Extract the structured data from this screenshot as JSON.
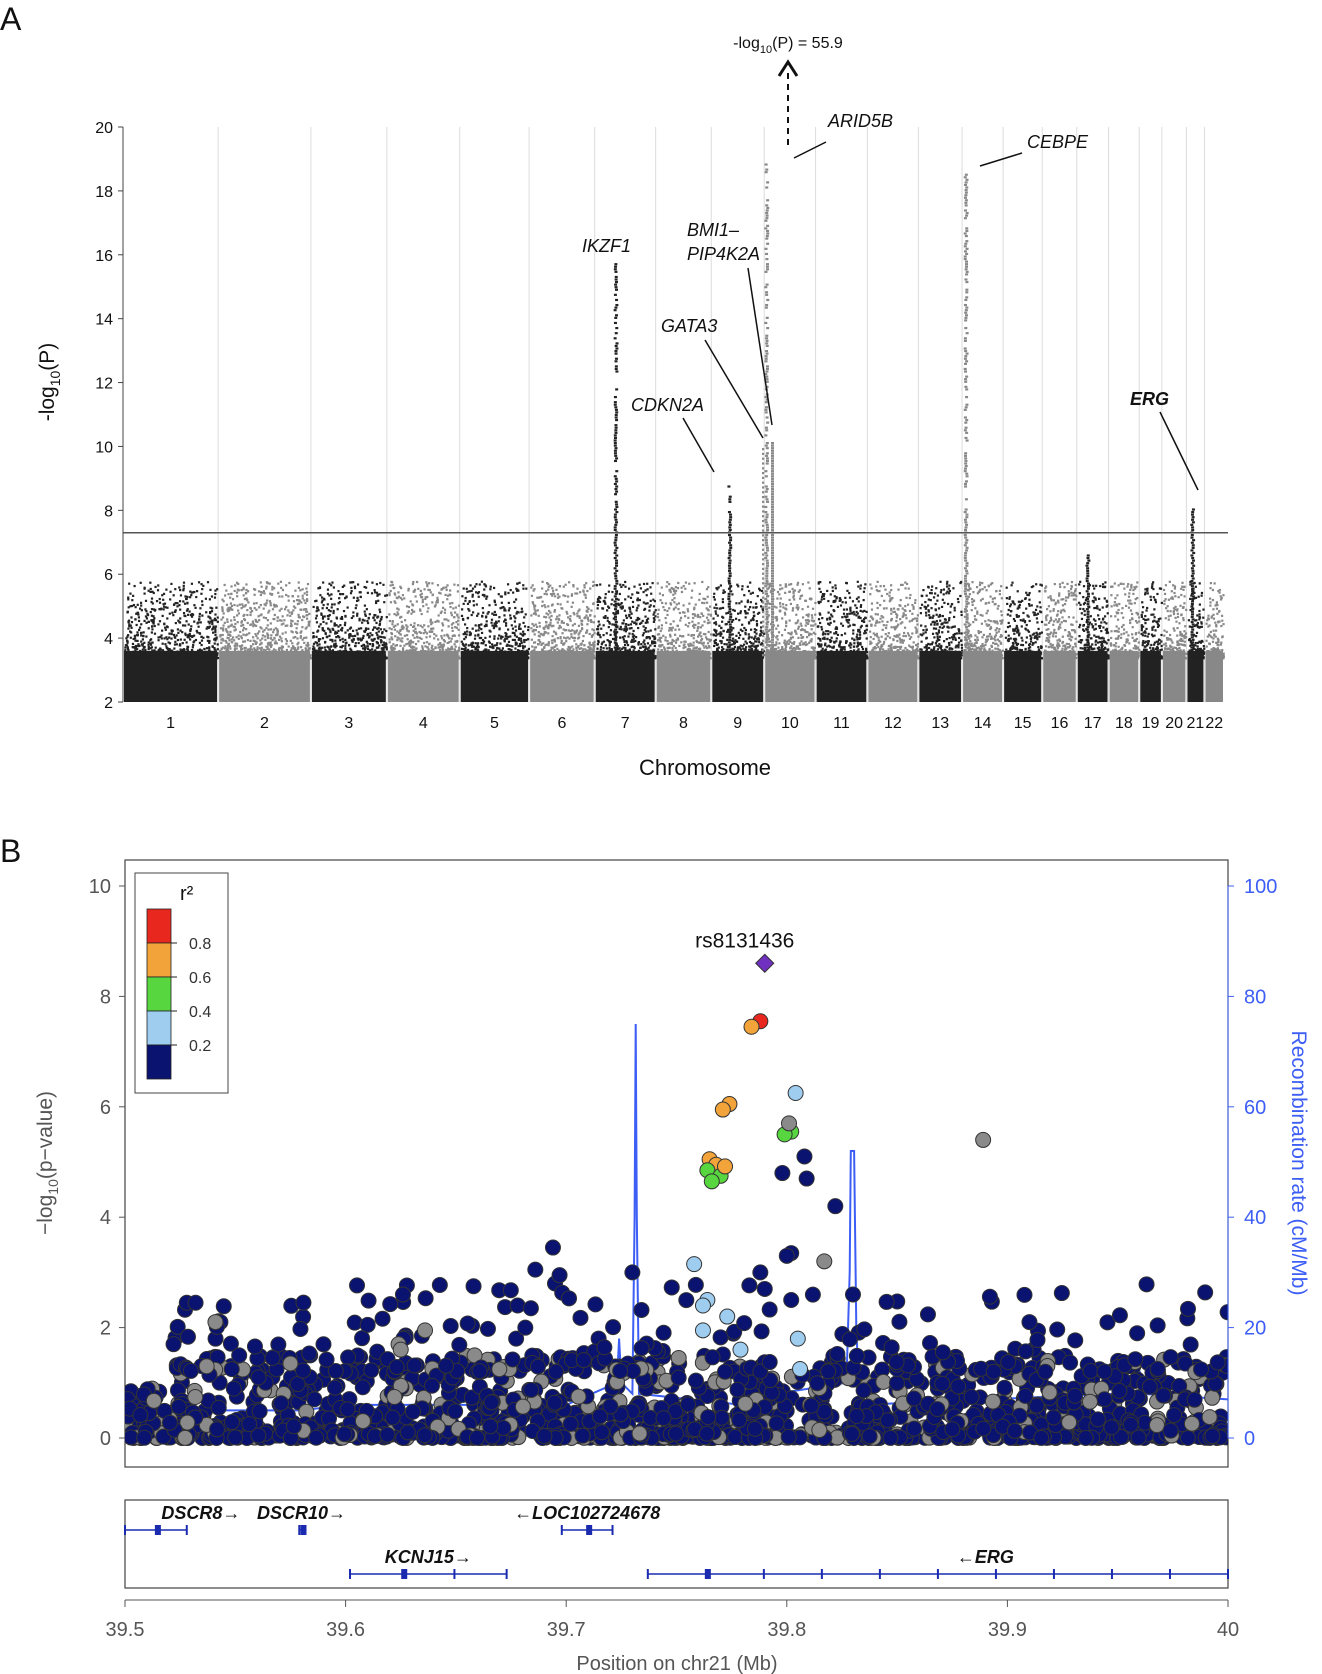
{
  "panels": {
    "a_label": "A",
    "b_label": "B"
  },
  "chart_data": [
    {
      "id": "manhattan",
      "type": "scatter",
      "title": "",
      "xlabel": "Chromosome",
      "ylabel_prefix": "-log",
      "ylabel_sub": "10",
      "ylabel_suffix": "(P)",
      "ylim": [
        2,
        20
      ],
      "yticks": [
        2,
        4,
        6,
        8,
        10,
        12,
        14,
        16,
        18,
        20
      ],
      "significance_threshold": 7.3,
      "chromosomes": [
        "1",
        "2",
        "3",
        "4",
        "5",
        "6",
        "7",
        "8",
        "9",
        "10",
        "11",
        "12",
        "13",
        "14",
        "15",
        "16",
        "17",
        "18",
        "19",
        "20",
        "21",
        "22"
      ],
      "off_scale_note": {
        "prefix": "-log",
        "sub": "10",
        "suffix": "(P) = 55.9",
        "max_value": 55.9
      },
      "gene_labels": [
        {
          "text": "IKZF1",
          "chromosome": "7",
          "bold": false
        },
        {
          "text": "CDKN2A",
          "chromosome": "9",
          "bold": false
        },
        {
          "text": "GATA3",
          "chromosome": "10",
          "bold": false
        },
        {
          "text": "BMI1–",
          "chromosome": "10",
          "bold": false
        },
        {
          "text": "PIP4K2A",
          "chromosome": "10",
          "bold": false
        },
        {
          "text": "ARID5B",
          "chromosome": "10",
          "bold": false
        },
        {
          "text": "CEBPE",
          "chromosome": "14",
          "bold": false
        },
        {
          "text": "ERG",
          "chromosome": "21",
          "bold": true
        }
      ],
      "peaks": [
        {
          "chromosome": "7",
          "max": 15.8
        },
        {
          "chromosome": "9",
          "max": 8.9
        },
        {
          "chromosome": "10",
          "max": 18.9
        },
        {
          "chromosome": "14",
          "max": 18.6
        },
        {
          "chromosome": "21",
          "max": 8.1
        },
        {
          "chromosome": "17",
          "max": 6.7
        }
      ],
      "colors": {
        "odd": "#222222",
        "even": "#888888",
        "threshold": "#555555"
      }
    },
    {
      "id": "regional",
      "type": "scatter",
      "xlabel": "Position on chr21 (Mb)",
      "ylabel_left_prefix": "−log",
      "ylabel_left_sub": "10",
      "ylabel_left_suffix": "(p−value)",
      "ylabel_right": "Recombination rate (cM/Mb)",
      "xlim": [
        39.5,
        40
      ],
      "xticks": [
        "39.5",
        "39.6",
        "39.7",
        "39.8",
        "39.9",
        "40"
      ],
      "ylim_left": [
        0,
        10
      ],
      "yticks_left": [
        "0",
        "2",
        "4",
        "6",
        "8",
        "10"
      ],
      "ylim_right": [
        0,
        100
      ],
      "yticks_right": [
        "0",
        "20",
        "40",
        "60",
        "80",
        "100"
      ],
      "lead_snp": {
        "label": "rs8131436",
        "position": 39.79,
        "value": 8.6
      },
      "legend": {
        "title": "r²",
        "labels": [
          "0.8",
          "0.6",
          "0.4",
          "0.2"
        ],
        "colors": [
          "#e8281e",
          "#f2a33a",
          "#57d63f",
          "#9ecdf0",
          "#0a1370"
        ]
      },
      "highlight_points": [
        {
          "x": 39.788,
          "y": 7.55,
          "r2": "red"
        },
        {
          "x": 39.784,
          "y": 7.45,
          "r2": "orange"
        },
        {
          "x": 39.774,
          "y": 6.05,
          "r2": "orange"
        },
        {
          "x": 39.771,
          "y": 5.95,
          "r2": "orange"
        },
        {
          "x": 39.765,
          "y": 5.05,
          "r2": "orange"
        },
        {
          "x": 39.768,
          "y": 4.95,
          "r2": "orange"
        },
        {
          "x": 39.764,
          "y": 4.85,
          "r2": "green"
        },
        {
          "x": 39.77,
          "y": 4.75,
          "r2": "green"
        },
        {
          "x": 39.772,
          "y": 4.92,
          "r2": "orange"
        },
        {
          "x": 39.766,
          "y": 4.65,
          "r2": "green"
        },
        {
          "x": 39.802,
          "y": 5.55,
          "r2": "green"
        },
        {
          "x": 39.799,
          "y": 5.5,
          "r2": "green"
        },
        {
          "x": 39.801,
          "y": 5.7,
          "r2": "grey"
        },
        {
          "x": 39.804,
          "y": 6.25,
          "r2": "lightblue"
        },
        {
          "x": 39.889,
          "y": 5.4,
          "r2": "grey"
        },
        {
          "x": 39.758,
          "y": 3.15,
          "r2": "lightblue"
        },
        {
          "x": 39.764,
          "y": 2.5,
          "r2": "lightblue"
        },
        {
          "x": 39.762,
          "y": 2.4,
          "r2": "lightblue"
        },
        {
          "x": 39.773,
          "y": 2.2,
          "r2": "lightblue"
        },
        {
          "x": 39.762,
          "y": 1.95,
          "r2": "lightblue"
        },
        {
          "x": 39.779,
          "y": 1.6,
          "r2": "lightblue"
        },
        {
          "x": 39.805,
          "y": 1.8,
          "r2": "lightblue"
        },
        {
          "x": 39.806,
          "y": 1.25,
          "r2": "lightblue"
        },
        {
          "x": 39.817,
          "y": 3.2,
          "r2": "grey"
        },
        {
          "x": 39.541,
          "y": 2.1,
          "r2": "grey"
        },
        {
          "x": 39.636,
          "y": 1.95,
          "r2": "grey"
        },
        {
          "x": 39.624,
          "y": 1.7,
          "r2": "grey"
        },
        {
          "x": 39.751,
          "y": 1.45,
          "r2": "grey"
        },
        {
          "x": 39.575,
          "y": 1.35,
          "r2": "grey"
        },
        {
          "x": 39.625,
          "y": 1.6,
          "r2": "grey"
        },
        {
          "x": 39.537,
          "y": 1.3,
          "r2": "grey"
        },
        {
          "x": 39.798,
          "y": 4.8,
          "r2": "navy"
        },
        {
          "x": 39.808,
          "y": 5.1,
          "r2": "navy"
        },
        {
          "x": 39.809,
          "y": 4.7,
          "r2": "navy"
        },
        {
          "x": 39.822,
          "y": 4.2,
          "r2": "navy"
        },
        {
          "x": 39.802,
          "y": 3.35,
          "r2": "navy"
        },
        {
          "x": 39.8,
          "y": 3.3,
          "r2": "navy"
        },
        {
          "x": 39.694,
          "y": 3.45,
          "r2": "navy"
        },
        {
          "x": 39.697,
          "y": 2.95,
          "r2": "navy"
        },
        {
          "x": 39.686,
          "y": 3.05,
          "r2": "navy"
        },
        {
          "x": 39.73,
          "y": 3.0,
          "r2": "navy"
        },
        {
          "x": 39.788,
          "y": 3.0,
          "r2": "navy"
        },
        {
          "x": 39.83,
          "y": 2.6,
          "r2": "navy"
        },
        {
          "x": 39.658,
          "y": 2.75,
          "r2": "navy"
        },
        {
          "x": 39.626,
          "y": 2.6,
          "r2": "navy"
        },
        {
          "x": 39.528,
          "y": 2.45,
          "r2": "navy"
        },
        {
          "x": 39.532,
          "y": 2.45,
          "r2": "navy"
        },
        {
          "x": 39.522,
          "y": 1.7,
          "r2": "navy"
        },
        {
          "x": 39.91,
          "y": 2.1,
          "r2": "navy"
        },
        {
          "x": 39.61,
          "y": 2.05,
          "r2": "navy"
        },
        {
          "x": 39.678,
          "y": 2.4,
          "r2": "navy"
        },
        {
          "x": 39.684,
          "y": 2.35,
          "r2": "navy"
        },
        {
          "x": 39.79,
          "y": 2.7,
          "r2": "navy"
        },
        {
          "x": 39.802,
          "y": 2.5,
          "r2": "navy"
        }
      ],
      "genes": [
        {
          "name": "DSCR8",
          "arrow": "→",
          "strand": "+",
          "start": 39.5,
          "end": 39.528,
          "row": 1
        },
        {
          "name": "DSCR10",
          "arrow": "→",
          "strand": "+",
          "start": 39.579,
          "end": 39.581,
          "row": 1
        },
        {
          "name": "LOC102724678",
          "arrow": "←",
          "strand": "-",
          "start": 39.698,
          "end": 39.721,
          "row": 1
        },
        {
          "name": "KCNJ15",
          "arrow": "→",
          "strand": "+",
          "start": 39.602,
          "end": 39.673,
          "row": 2
        },
        {
          "name": "ERG",
          "arrow": "←",
          "strand": "-",
          "start": 39.737,
          "end": 40.0,
          "row": 2
        }
      ],
      "colors": {
        "recomb": "#3d5ef5",
        "navy": "#0a1370",
        "grey": "#8a8a8a",
        "lead": "#7030c0",
        "gene": "#1a2bb0"
      }
    }
  ]
}
